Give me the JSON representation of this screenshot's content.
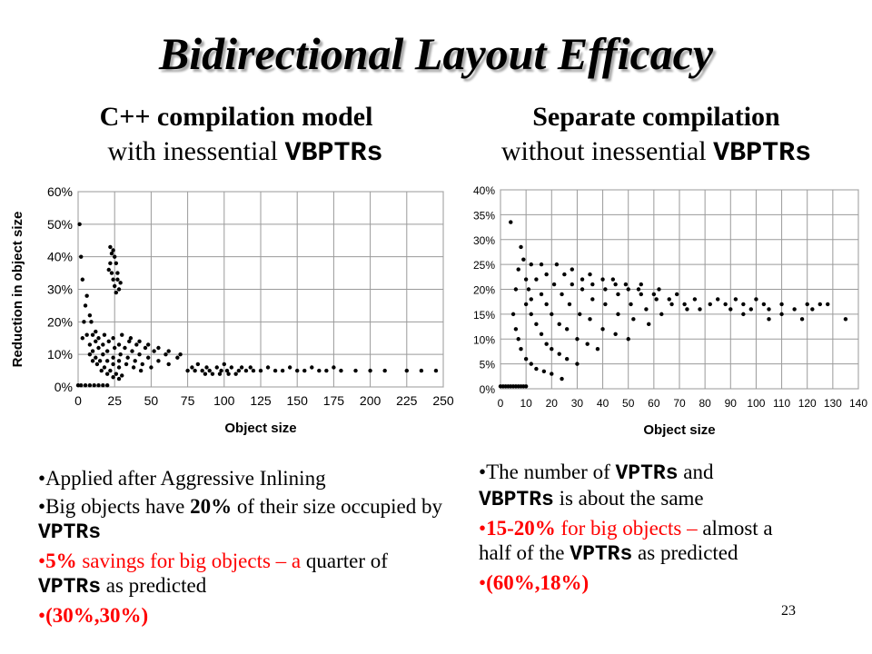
{
  "slide": {
    "title": "Bidirectional Layout Efficacy",
    "page_number": "23"
  },
  "left": {
    "heading_line1": "C++ compilation model",
    "heading_line2_prefix": "with inessential ",
    "heading_line2_code": "VBPTRs",
    "bullets": [
      {
        "parts": [
          {
            "t": "Applied after Aggressive Inlining"
          }
        ],
        "red": false
      },
      {
        "parts": [
          {
            "t": "Big objects have "
          },
          {
            "t": "20%",
            "b": true
          },
          {
            "t": " of their size occupied by "
          },
          {
            "t": "VPTRs",
            "code": true
          }
        ],
        "red": false
      },
      {
        "parts": [
          {
            "t": "5%",
            "b": true
          },
          {
            "t": " savings for big objects – a "
          },
          {
            "t": "quarter of ",
            "black": true
          },
          {
            "t": "VPTRs",
            "code": true,
            "black": true
          },
          {
            "t": " as predicted",
            "black": true
          }
        ],
        "red": true
      },
      {
        "parts": [
          {
            "t": "(30%,30%)",
            "b": true
          }
        ],
        "red": true
      }
    ]
  },
  "right": {
    "heading_line1": "Separate compilation",
    "heading_line2_prefix": "without inessential ",
    "heading_line2_code": "VBPTRs",
    "bullets": [
      {
        "parts": [
          {
            "t": "The number of "
          },
          {
            "t": "VPTRs",
            "code": true
          },
          {
            "t": " and "
          },
          {
            "t": "VBPTRs",
            "code": true
          },
          {
            "t": " is about the same"
          }
        ],
        "red": false
      },
      {
        "parts": [
          {
            "t": "15-20%",
            "b": true
          },
          {
            "t": " for big objects – "
          },
          {
            "t": "almost a half of the ",
            "black": true
          },
          {
            "t": "VPTRs",
            "code": true,
            "black": true
          },
          {
            "t": " as predicted",
            "black": true
          }
        ],
        "red": true
      },
      {
        "parts": [
          {
            "t": "(60%,18%)",
            "b": true
          }
        ],
        "red": true
      }
    ]
  },
  "chart_data": [
    {
      "type": "scatter",
      "title": "",
      "xlabel": "Object size",
      "ylabel": "Reduction in object size",
      "xlim": [
        0,
        250
      ],
      "ylim": [
        0,
        60
      ],
      "x_ticks": [
        "0",
        "25",
        "50",
        "75",
        "100",
        "125",
        "150",
        "175",
        "200",
        "225",
        "250"
      ],
      "y_ticks": [
        "0%",
        "10%",
        "20%",
        "30%",
        "40%",
        "50%",
        "60%"
      ],
      "grid": true,
      "series": [
        {
          "values": [
            [
              1,
              50
            ],
            [
              3,
              33
            ],
            [
              5,
              25
            ],
            [
              2,
              40
            ],
            [
              4,
              20
            ],
            [
              3,
              15
            ],
            [
              6,
              28
            ],
            [
              8,
              22
            ],
            [
              9,
              20
            ],
            [
              10,
              16
            ],
            [
              12,
              14
            ],
            [
              14,
              12
            ],
            [
              17,
              10
            ],
            [
              20,
              8
            ],
            [
              24,
              7
            ],
            [
              28,
              6
            ],
            [
              6,
              16
            ],
            [
              8,
              13
            ],
            [
              10,
              11
            ],
            [
              12,
              9
            ],
            [
              15,
              8
            ],
            [
              18,
              6
            ],
            [
              22,
              5
            ],
            [
              26,
              4
            ],
            [
              30,
              3.5
            ],
            [
              8,
              10
            ],
            [
              10,
              8
            ],
            [
              13,
              7
            ],
            [
              16,
              5
            ],
            [
              20,
              4
            ],
            [
              24,
              3
            ],
            [
              28,
              2.5
            ],
            [
              12,
              17
            ],
            [
              14,
              15
            ],
            [
              17,
              13
            ],
            [
              20,
              11
            ],
            [
              24,
              9
            ],
            [
              28,
              8
            ],
            [
              33,
              7
            ],
            [
              38,
              6
            ],
            [
              43,
              5
            ],
            [
              18,
              16
            ],
            [
              21,
              14
            ],
            [
              25,
              12
            ],
            [
              29,
              10
            ],
            [
              34,
              9
            ],
            [
              39,
              8
            ],
            [
              44,
              7
            ],
            [
              50,
              6
            ],
            [
              24,
              15
            ],
            [
              28,
              13
            ],
            [
              32,
              12
            ],
            [
              37,
              11
            ],
            [
              42,
              10
            ],
            [
              48,
              9
            ],
            [
              55,
              8
            ],
            [
              62,
              7
            ],
            [
              30,
              16
            ],
            [
              35,
              14
            ],
            [
              40,
              13
            ],
            [
              46,
              12
            ],
            [
              52,
              11
            ],
            [
              60,
              10
            ],
            [
              68,
              9
            ],
            [
              36,
              15
            ],
            [
              42,
              14
            ],
            [
              48,
              13
            ],
            [
              55,
              12
            ],
            [
              62,
              11
            ],
            [
              70,
              10
            ],
            [
              22,
              43
            ],
            [
              23,
              41
            ],
            [
              24,
              42
            ],
            [
              25,
              40
            ],
            [
              22,
              38
            ],
            [
              26,
              38
            ],
            [
              23,
              35
            ],
            [
              24,
              33
            ],
            [
              27,
              35
            ],
            [
              25,
              31
            ],
            [
              26,
              29
            ],
            [
              28,
              30
            ],
            [
              27,
              33
            ],
            [
              21,
              36
            ],
            [
              29,
              32
            ],
            [
              0,
              0.5
            ],
            [
              2,
              0.5
            ],
            [
              5,
              0.5
            ],
            [
              8,
              0.5
            ],
            [
              11,
              0.5
            ],
            [
              14,
              0.5
            ],
            [
              17,
              0.5
            ],
            [
              20,
              0.5
            ],
            [
              75,
              5
            ],
            [
              78,
              6
            ],
            [
              80,
              5
            ],
            [
              82,
              7
            ],
            [
              85,
              5
            ],
            [
              88,
              6
            ],
            [
              90,
              5
            ],
            [
              92,
              4
            ],
            [
              95,
              6
            ],
            [
              98,
              5
            ],
            [
              100,
              7
            ],
            [
              102,
              5
            ],
            [
              105,
              6
            ],
            [
              108,
              4
            ],
            [
              110,
              5
            ],
            [
              112,
              6
            ],
            [
              115,
              5
            ],
            [
              118,
              6
            ],
            [
              120,
              5
            ],
            [
              125,
              5
            ],
            [
              130,
              6
            ],
            [
              135,
              5
            ],
            [
              140,
              5
            ],
            [
              145,
              6
            ],
            [
              150,
              5
            ],
            [
              155,
              5
            ],
            [
              160,
              6
            ],
            [
              165,
              5
            ],
            [
              170,
              5
            ],
            [
              175,
              6
            ],
            [
              180,
              5
            ],
            [
              190,
              5
            ],
            [
              200,
              5
            ],
            [
              210,
              5
            ],
            [
              225,
              5
            ],
            [
              235,
              5
            ],
            [
              245,
              5
            ],
            [
              97,
              4
            ],
            [
              103,
              4
            ],
            [
              87,
              4
            ]
          ]
        }
      ]
    },
    {
      "type": "scatter",
      "title": "",
      "xlabel": "Object size",
      "ylabel": "",
      "xlim": [
        0,
        140
      ],
      "ylim": [
        0,
        40
      ],
      "x_ticks": [
        "0",
        "10",
        "20",
        "30",
        "40",
        "50",
        "60",
        "70",
        "80",
        "90",
        "100",
        "110",
        "120",
        "130",
        "140"
      ],
      "y_ticks": [
        "0%",
        "5%",
        "10%",
        "15%",
        "20%",
        "25%",
        "30%",
        "35%",
        "40%"
      ],
      "grid": true,
      "series": [
        {
          "values": [
            [
              4,
              33.5
            ],
            [
              6,
              20
            ],
            [
              7,
              24
            ],
            [
              8,
              28.5
            ],
            [
              9,
              26
            ],
            [
              10,
              22
            ],
            [
              11,
              20
            ],
            [
              12,
              18
            ],
            [
              5,
              15
            ],
            [
              6,
              12
            ],
            [
              7,
              10
            ],
            [
              8,
              8
            ],
            [
              10,
              6
            ],
            [
              12,
              5
            ],
            [
              14,
              4
            ],
            [
              17,
              3.5
            ],
            [
              20,
              3
            ],
            [
              24,
              2
            ],
            [
              10,
              17
            ],
            [
              12,
              15
            ],
            [
              14,
              13
            ],
            [
              16,
              11
            ],
            [
              18,
              9
            ],
            [
              20,
              8
            ],
            [
              23,
              7
            ],
            [
              26,
              6
            ],
            [
              30,
              5
            ],
            [
              12,
              25
            ],
            [
              14,
              22
            ],
            [
              16,
              19
            ],
            [
              18,
              17
            ],
            [
              20,
              15
            ],
            [
              23,
              13
            ],
            [
              26,
              12
            ],
            [
              30,
              10
            ],
            [
              34,
              9
            ],
            [
              38,
              8
            ],
            [
              16,
              25
            ],
            [
              18,
              23
            ],
            [
              21,
              21
            ],
            [
              24,
              19
            ],
            [
              27,
              17
            ],
            [
              31,
              15
            ],
            [
              35,
              14
            ],
            [
              40,
              12
            ],
            [
              45,
              11
            ],
            [
              50,
              10
            ],
            [
              22,
              25
            ],
            [
              25,
              23
            ],
            [
              28,
              21
            ],
            [
              32,
              20
            ],
            [
              36,
              18
            ],
            [
              41,
              17
            ],
            [
              46,
              15
            ],
            [
              52,
              14
            ],
            [
              58,
              13
            ],
            [
              28,
              24
            ],
            [
              32,
              22
            ],
            [
              36,
              21
            ],
            [
              41,
              20
            ],
            [
              46,
              19
            ],
            [
              51,
              17
            ],
            [
              57,
              16
            ],
            [
              63,
              15
            ],
            [
              35,
              23
            ],
            [
              40,
              22
            ],
            [
              45,
              21
            ],
            [
              50,
              20
            ],
            [
              55,
              19
            ],
            [
              61,
              18
            ],
            [
              67,
              17
            ],
            [
              73,
              16
            ],
            [
              44,
              22
            ],
            [
              49,
              21
            ],
            [
              54,
              20
            ],
            [
              60,
              19
            ],
            [
              66,
              18
            ],
            [
              72,
              17
            ],
            [
              78,
              16
            ],
            [
              55,
              21
            ],
            [
              62,
              20
            ],
            [
              69,
              19
            ],
            [
              76,
              18
            ],
            [
              82,
              17
            ],
            [
              85,
              18
            ],
            [
              88,
              17
            ],
            [
              90,
              16
            ],
            [
              92,
              18
            ],
            [
              95,
              17
            ],
            [
              98,
              16
            ],
            [
              100,
              18
            ],
            [
              103,
              17
            ],
            [
              105,
              16
            ],
            [
              110,
              17
            ],
            [
              115,
              16
            ],
            [
              120,
              17
            ],
            [
              122,
              16
            ],
            [
              125,
              17
            ],
            [
              128,
              17
            ],
            [
              135,
              14
            ],
            [
              118,
              14
            ],
            [
              110,
              15
            ],
            [
              105,
              14
            ],
            [
              95,
              15
            ],
            [
              0,
              0.5
            ],
            [
              1,
              0.5
            ],
            [
              2,
              0.5
            ],
            [
              3,
              0.5
            ],
            [
              4,
              0.5
            ],
            [
              5,
              0.5
            ],
            [
              6,
              0.5
            ],
            [
              7,
              0.5
            ],
            [
              8,
              0.5
            ],
            [
              9,
              0.5
            ],
            [
              10,
              0.5
            ]
          ]
        }
      ]
    }
  ]
}
